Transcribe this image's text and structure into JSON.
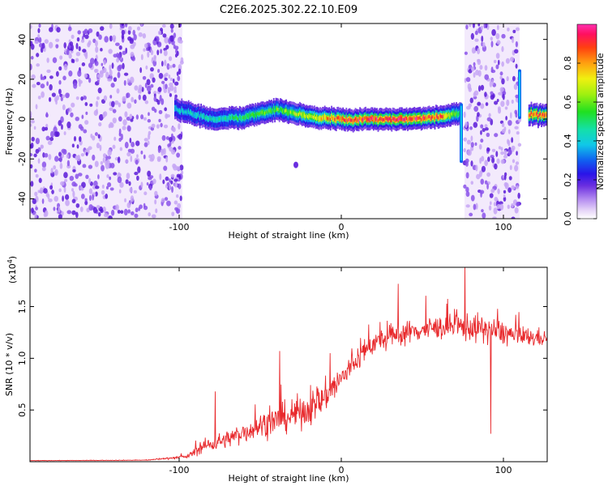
{
  "chart_data": [
    {
      "type": "heatmap",
      "title": "C2E6.2025.302.22.10.E09",
      "xlabel": "Height of straight line (km)",
      "ylabel": "Frequency (Hz)",
      "xlim": [
        -192,
        127
      ],
      "ylim": [
        -50,
        48
      ],
      "xticks": [
        -100,
        0,
        100
      ],
      "xtick_labels": [
        "-100",
        "0",
        "100"
      ],
      "yticks": [
        -40,
        -20,
        0,
        20,
        40
      ],
      "ytick_labels": [
        "-40",
        "-20",
        "0",
        "20",
        "40"
      ],
      "colorbar": {
        "label": "Normalized spectral amplitude",
        "range": [
          0,
          1
        ],
        "ticks": [
          0.0,
          0.2,
          0.4,
          0.6,
          0.8
        ],
        "tick_labels": [
          "0.0",
          "0.2",
          "0.4",
          "0.6",
          "0.8"
        ]
      },
      "noise_regions_km": [
        [
          -192,
          -98
        ],
        [
          76,
          110
        ]
      ],
      "signal_band": {
        "x_km": [
          -103,
          -80,
          -60,
          -40,
          -20,
          0,
          20,
          40,
          60,
          74,
          80,
          110,
          115,
          127
        ],
        "freq_hz": [
          5,
          0,
          1,
          5,
          1,
          0,
          0,
          0,
          1,
          3,
          null,
          null,
          2,
          2
        ],
        "peak_amplitude": [
          0.4,
          0.45,
          0.55,
          0.6,
          0.7,
          0.9,
          0.95,
          0.95,
          0.9,
          0.5,
          null,
          null,
          0.9,
          0.9
        ]
      },
      "isolated_blob": {
        "x_km": -28,
        "freq_hz": -23
      }
    },
    {
      "type": "line",
      "xlabel": "Height of straight line (km)",
      "ylabel": "SNR (10 * v/v)",
      "multiplier": "(x10⁴)",
      "multiplier_base": "(x10",
      "multiplier_exp": "4",
      "xlim": [
        -192,
        127
      ],
      "ylim": [
        0,
        1.88
      ],
      "xticks": [
        -100,
        0,
        100
      ],
      "xtick_labels": [
        "-100",
        "0",
        "100"
      ],
      "yticks": [
        0.5,
        1.0,
        1.5
      ],
      "ytick_labels": [
        "0.5",
        "1.0",
        "1.5"
      ],
      "color": "#e8292c",
      "series": [
        {
          "name": "SNR",
          "trend_x_km": [
            -192,
            -120,
            -95,
            -85,
            -70,
            -50,
            -30,
            -15,
            0,
            10,
            20,
            40,
            60,
            80,
            100,
            110,
            127
          ],
          "trend_y": [
            0.01,
            0.015,
            0.05,
            0.15,
            0.22,
            0.35,
            0.45,
            0.55,
            0.8,
            1.0,
            1.15,
            1.25,
            1.3,
            1.3,
            1.25,
            1.2,
            1.2
          ],
          "noise_amplitude": [
            0.003,
            0.005,
            0.03,
            0.12,
            0.15,
            0.22,
            0.28,
            0.3,
            0.25,
            0.22,
            0.2,
            0.2,
            0.2,
            0.25,
            0.22,
            0.18,
            0.15
          ],
          "spikes": [
            {
              "x_km": -78,
              "y": 0.68
            },
            {
              "x_km": -38,
              "y": 1.07
            },
            {
              "x_km": -7,
              "y": 1.05
            },
            {
              "x_km": 35,
              "y": 1.72
            },
            {
              "x_km": 76,
              "y": 1.88
            },
            {
              "x_km": 92,
              "y": 0.27
            }
          ]
        }
      ]
    }
  ]
}
